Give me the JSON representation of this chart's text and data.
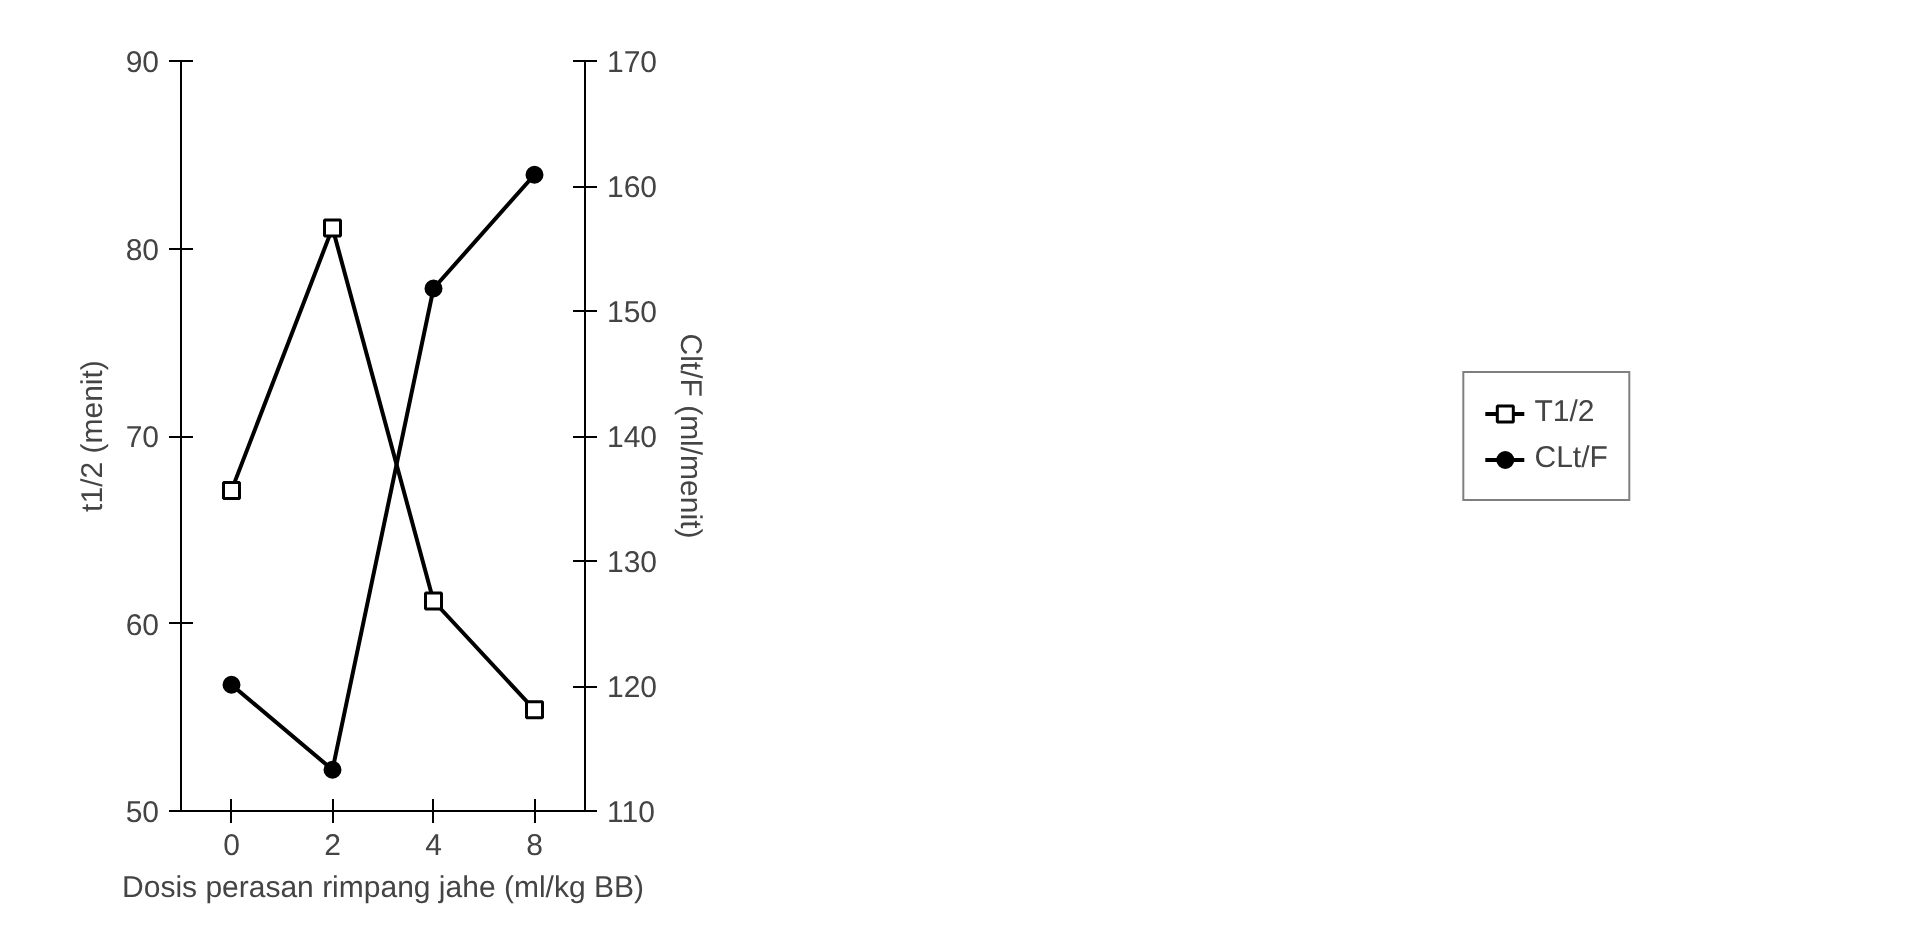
{
  "chart_data": {
    "type": "line",
    "xlabel": "Dosis perasan rimpang jahe (ml/kg BB)",
    "ylabel": "t1/2 (menit)",
    "y2label": "Clt/F (ml/menit)",
    "categories": [
      "0",
      "2",
      "4",
      "8"
    ],
    "series": [
      {
        "name": "T1/2",
        "color": "#000000",
        "marker": "square",
        "values": [
          67.1,
          81.1,
          61.2,
          55.4
        ]
      },
      {
        "name": "CLt/F",
        "color": "#000000",
        "marker": "circle",
        "axis": "y2",
        "values": [
          120.1,
          113.3,
          151.8,
          160.9
        ]
      }
    ],
    "ylim": [
      50,
      90
    ],
    "yticks": [
      50,
      60,
      70,
      80,
      90
    ],
    "y2lim": [
      110,
      170
    ],
    "y2ticks": [
      110,
      120,
      130,
      140,
      150,
      160,
      170
    ],
    "grid": false,
    "legend": "right",
    "line_style": "solid"
  }
}
